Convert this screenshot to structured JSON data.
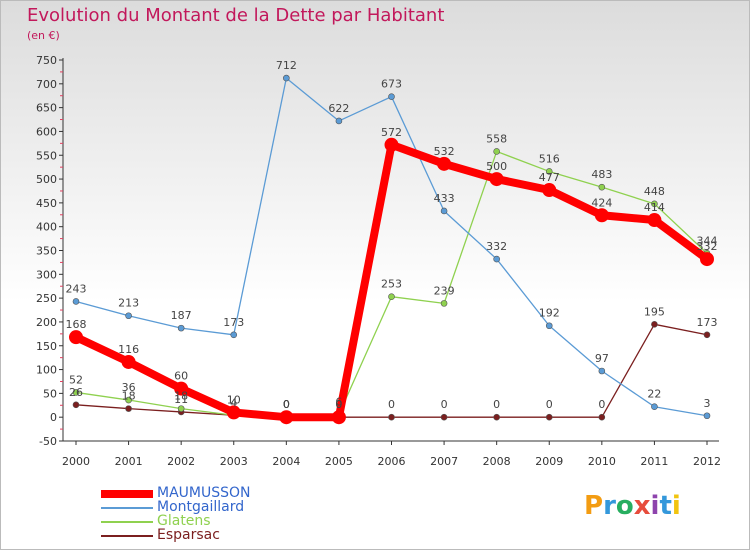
{
  "title": "Evolution du Montant de la Dette par Habitant",
  "unit": "(en €)",
  "logo": {
    "letters": [
      "P",
      "r",
      "o",
      "x",
      "i",
      "t",
      "i"
    ],
    "colors": [
      "#f39c12",
      "#3498db",
      "#27ae60",
      "#e74c3c",
      "#8e44ad",
      "#3498db",
      "#f1c40f"
    ]
  },
  "chart_data": {
    "type": "line",
    "x": [
      "2000",
      "2001",
      "2002",
      "2003",
      "2004",
      "2005",
      "2006",
      "2007",
      "2008",
      "2009",
      "2010",
      "2011",
      "2012"
    ],
    "ylim": [
      -50,
      750
    ],
    "yticks": [
      "-50",
      "0",
      "50",
      "100",
      "150",
      "200",
      "250",
      "300",
      "350",
      "400",
      "450",
      "500",
      "550",
      "600",
      "650",
      "700",
      "750"
    ],
    "grid": false,
    "legend_position": "bottom-left",
    "series": [
      {
        "name": "MAUMUSSON",
        "color": "#ff0000",
        "width": 8,
        "marker": 7,
        "values": [
          168,
          116,
          60,
          10,
          0,
          0,
          572,
          532,
          500,
          477,
          424,
          414,
          332
        ],
        "labels": [
          "168",
          "116",
          "60",
          "10",
          "0",
          "0",
          "572",
          "532",
          "500",
          "477",
          "424",
          "414",
          "332"
        ]
      },
      {
        "name": "Montgaillard",
        "color": "#5b9bd5",
        "width": 1.3,
        "marker": 3,
        "values": [
          243,
          213,
          187,
          173,
          712,
          622,
          673,
          433,
          332,
          192,
          97,
          22,
          3
        ],
        "labels": [
          "243",
          "213",
          "187",
          "173",
          "712",
          "622",
          "673",
          "433",
          "332",
          "192",
          "97",
          "22",
          "3"
        ]
      },
      {
        "name": "Glatens",
        "color": "#8fd14f",
        "width": 1.3,
        "marker": 3,
        "values": [
          52,
          36,
          18,
          4,
          0,
          6,
          253,
          239,
          558,
          516,
          483,
          448,
          344
        ],
        "labels": [
          "52",
          "36",
          "18",
          "4",
          "0",
          "6",
          "253",
          "239",
          "558",
          "516",
          "483",
          "448",
          "344"
        ]
      },
      {
        "name": "Esparsac",
        "color": "#7b1f1f",
        "width": 1.3,
        "marker": 3,
        "values": [
          26,
          18,
          11,
          4,
          0,
          0,
          0,
          0,
          0,
          0,
          0,
          195,
          173
        ],
        "labels": [
          "26",
          "18",
          "11",
          "4",
          "0",
          "0",
          "0",
          "0",
          "0",
          "0",
          "0",
          "195",
          "173"
        ]
      }
    ]
  }
}
